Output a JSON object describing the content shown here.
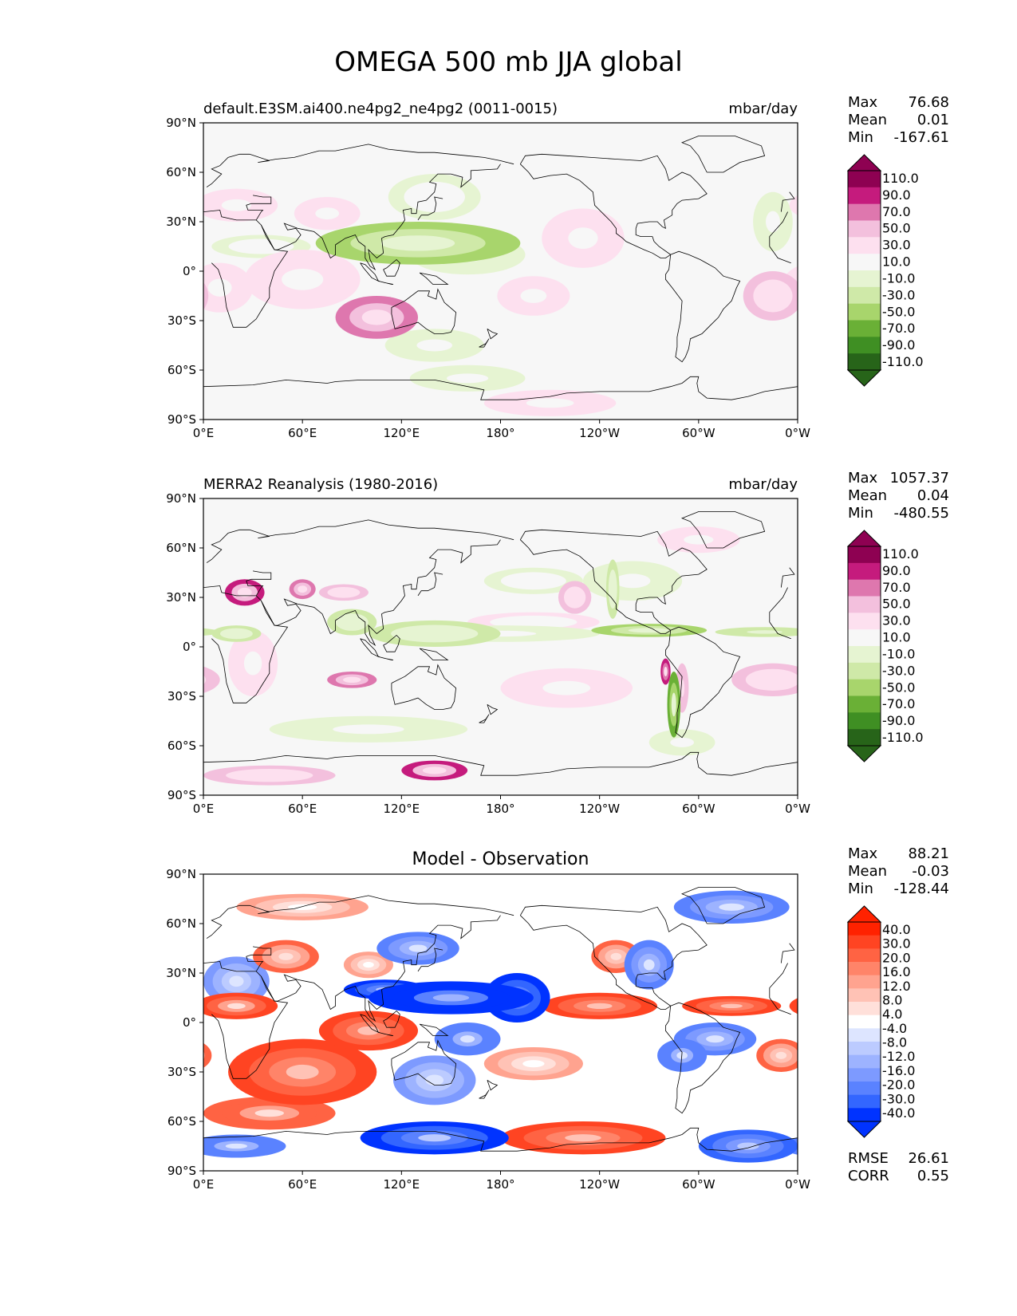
{
  "figure": {
    "title": "OMEGA 500 mb JJA global"
  },
  "axes": {
    "lat_ticks": [
      "90°N",
      "60°N",
      "30°N",
      "0°",
      "30°S",
      "60°S",
      "90°S"
    ],
    "lon_ticks": [
      "0°E",
      "60°E",
      "120°E",
      "180°",
      "120°W",
      "60°W",
      "0°W"
    ]
  },
  "colors": {
    "omega_levels_colors": [
      "#276419",
      "#3f8f23",
      "#6ab036",
      "#a8d56c",
      "#cfe9a8",
      "#e6f4d2",
      "#f7f7f7",
      "#fde0ef",
      "#f3c0dd",
      "#de77ae",
      "#c51b7d",
      "#8e0152"
    ],
    "diff_levels_colors": [
      "#0033ff",
      "#3366ff",
      "#5a82ff",
      "#7d9aff",
      "#9db3ff",
      "#bccbff",
      "#dde5ff",
      "#ffffff",
      "#ffe0da",
      "#ffc2b5",
      "#ffa38f",
      "#ff8469",
      "#ff6343",
      "#ff4422",
      "#ff2200"
    ],
    "coast": "#000000"
  },
  "chart_data": [
    {
      "type": "heatmap",
      "id": "model",
      "left_title": "default.E3SM.ai400.ne4pg2_ne4pg2 (0011-0015)",
      "right_title": "mbar/day",
      "center_title": "",
      "xlim": [
        0,
        360
      ],
      "ylim": [
        -90,
        90
      ],
      "stats": [
        {
          "label": "Max",
          "value": "76.68"
        },
        {
          "label": "Mean",
          "value": "0.01"
        },
        {
          "label": "Min",
          "value": "-167.61"
        }
      ],
      "colorbar_levels": [
        "110.0",
        "90.0",
        "70.0",
        "50.0",
        "30.0",
        "10.0",
        "-10.0",
        "-30.0",
        "-50.0",
        "-70.0",
        "-90.0",
        "-110.0"
      ],
      "features": [
        {
          "lon": 130,
          "lat": 17,
          "rx": 62,
          "ry": 13,
          "v": -60
        },
        {
          "lon": 130,
          "lat": 17,
          "rx": 48,
          "ry": 8,
          "v": -50
        },
        {
          "lon": 108,
          "lat": 15,
          "rx": 22,
          "ry": 7,
          "v": -40
        },
        {
          "lon": 160,
          "lat": 10,
          "rx": 35,
          "ry": 12,
          "v": -22
        },
        {
          "lon": 140,
          "lat": 45,
          "rx": 28,
          "ry": 14,
          "v": -12
        },
        {
          "lon": 35,
          "lat": 15,
          "rx": 30,
          "ry": 7,
          "v": -12
        },
        {
          "lon": 345,
          "lat": 30,
          "rx": 12,
          "ry": 18,
          "v": -15
        },
        {
          "lon": 300,
          "lat": 55,
          "rx": 30,
          "ry": 10,
          "v": -10
        },
        {
          "lon": 105,
          "lat": -28,
          "rx": 25,
          "ry": 13,
          "v": 55
        },
        {
          "lon": 100,
          "lat": -25,
          "rx": 14,
          "ry": 6,
          "v": 30
        },
        {
          "lon": 60,
          "lat": -5,
          "rx": 35,
          "ry": 18,
          "v": 25
        },
        {
          "lon": 10,
          "lat": -10,
          "rx": 20,
          "ry": 15,
          "v": 25
        },
        {
          "lon": 345,
          "lat": -15,
          "rx": 18,
          "ry": 15,
          "v": 35
        },
        {
          "lon": 350,
          "lat": -15,
          "rx": 6,
          "ry": 8,
          "v": 30
        },
        {
          "lon": 230,
          "lat": 20,
          "rx": 25,
          "ry": 18,
          "v": 15
        },
        {
          "lon": 200,
          "lat": -15,
          "rx": 22,
          "ry": 12,
          "v": 20
        },
        {
          "lon": 75,
          "lat": 35,
          "rx": 20,
          "ry": 10,
          "v": 20
        },
        {
          "lon": 20,
          "lat": 40,
          "rx": 25,
          "ry": 10,
          "v": 18
        },
        {
          "lon": 210,
          "lat": -80,
          "rx": 40,
          "ry": 8,
          "v": 15
        },
        {
          "lon": 140,
          "lat": -45,
          "rx": 30,
          "ry": 10,
          "v": -15
        },
        {
          "lon": 160,
          "lat": -65,
          "rx": 35,
          "ry": 8,
          "v": -15
        }
      ]
    },
    {
      "type": "heatmap",
      "id": "obs",
      "left_title": "MERRA2 Reanalysis (1980-2016)",
      "right_title": "mbar/day",
      "center_title": "",
      "xlim": [
        0,
        360
      ],
      "ylim": [
        -90,
        90
      ],
      "stats": [
        {
          "label": "Max",
          "value": "1057.37"
        },
        {
          "label": "Mean",
          "value": "0.04"
        },
        {
          "label": "Min",
          "value": "-480.55"
        }
      ],
      "colorbar_levels": [
        "110.0",
        "90.0",
        "70.0",
        "50.0",
        "30.0",
        "10.0",
        "-10.0",
        "-30.0",
        "-50.0",
        "-70.0",
        "-90.0",
        "-110.0"
      ],
      "features": [
        {
          "lon": 270,
          "lat": 10,
          "rx": 35,
          "ry": 4,
          "v": -60
        },
        {
          "lon": 340,
          "lat": 9,
          "rx": 30,
          "ry": 3,
          "v": -50
        },
        {
          "lon": 140,
          "lat": 8,
          "rx": 40,
          "ry": 8,
          "v": -40
        },
        {
          "lon": 90,
          "lat": 15,
          "rx": 15,
          "ry": 8,
          "v": -40
        },
        {
          "lon": 20,
          "lat": 8,
          "rx": 15,
          "ry": 5,
          "v": -35
        },
        {
          "lon": 180,
          "lat": 8,
          "rx": 60,
          "ry": 5,
          "v": -20
        },
        {
          "lon": 285,
          "lat": -35,
          "rx": 4,
          "ry": 20,
          "v": -80
        },
        {
          "lon": 280,
          "lat": -15,
          "rx": 3,
          "ry": 8,
          "v": 80
        },
        {
          "lon": 290,
          "lat": -25,
          "rx": 4,
          "ry": 15,
          "v": 45
        },
        {
          "lon": 248,
          "lat": 35,
          "rx": 4,
          "ry": 18,
          "v": -40
        },
        {
          "lon": 25,
          "lat": 33,
          "rx": 12,
          "ry": 8,
          "v": 70
        },
        {
          "lon": 60,
          "lat": 35,
          "rx": 8,
          "ry": 6,
          "v": 50
        },
        {
          "lon": 85,
          "lat": 33,
          "rx": 15,
          "ry": 5,
          "v": 40
        },
        {
          "lon": 225,
          "lat": 30,
          "rx": 10,
          "ry": 10,
          "v": 35
        },
        {
          "lon": 90,
          "lat": -20,
          "rx": 15,
          "ry": 5,
          "v": 55
        },
        {
          "lon": 30,
          "lat": -10,
          "rx": 15,
          "ry": 20,
          "v": 25
        },
        {
          "lon": 345,
          "lat": -20,
          "rx": 25,
          "ry": 10,
          "v": 30
        },
        {
          "lon": 220,
          "lat": -25,
          "rx": 40,
          "ry": 12,
          "v": 18
        },
        {
          "lon": 140,
          "lat": -75,
          "rx": 20,
          "ry": 6,
          "v": 70
        },
        {
          "lon": 40,
          "lat": -78,
          "rx": 40,
          "ry": 6,
          "v": 30
        },
        {
          "lon": 100,
          "lat": -50,
          "rx": 60,
          "ry": 8,
          "v": -18
        },
        {
          "lon": 290,
          "lat": -58,
          "rx": 20,
          "ry": 8,
          "v": -15
        },
        {
          "lon": 260,
          "lat": 40,
          "rx": 30,
          "ry": 12,
          "v": -15
        },
        {
          "lon": 300,
          "lat": 65,
          "rx": 25,
          "ry": 8,
          "v": 20
        },
        {
          "lon": 200,
          "lat": 40,
          "rx": 30,
          "ry": 8,
          "v": -12
        },
        {
          "lon": 200,
          "lat": 15,
          "rx": 40,
          "ry": 6,
          "v": 12
        }
      ]
    },
    {
      "type": "heatmap",
      "id": "diff",
      "left_title": "",
      "right_title": "",
      "center_title": "Model - Observation",
      "xlim": [
        0,
        360
      ],
      "ylim": [
        -90,
        90
      ],
      "stats": [
        {
          "label": "Max",
          "value": "88.21"
        },
        {
          "label": "Mean",
          "value": "-0.03"
        },
        {
          "label": "Min",
          "value": "-128.44"
        }
      ],
      "colorbar_levels": [
        "40.0",
        "30.0",
        "20.0",
        "16.0",
        "12.0",
        "8.0",
        "4.0",
        "-4.0",
        "-8.0",
        "-12.0",
        "-16.0",
        "-20.0",
        "-30.0",
        "-40.0"
      ],
      "metrics": [
        {
          "label": "RMSE",
          "value": "26.61"
        },
        {
          "label": "CORR",
          "value": "0.55"
        }
      ],
      "features": [
        {
          "lon": 150,
          "lat": 15,
          "rx": 50,
          "ry": 10,
          "v": -55
        },
        {
          "lon": 190,
          "lat": 15,
          "rx": 20,
          "ry": 15,
          "v": -45
        },
        {
          "lon": 110,
          "lat": 20,
          "rx": 25,
          "ry": 6,
          "v": -45
        },
        {
          "lon": 160,
          "lat": -10,
          "rx": 20,
          "ry": 10,
          "v": -30
        },
        {
          "lon": 140,
          "lat": -70,
          "rx": 45,
          "ry": 10,
          "v": -45
        },
        {
          "lon": 20,
          "lat": -75,
          "rx": 30,
          "ry": 7,
          "v": -30
        },
        {
          "lon": 330,
          "lat": -75,
          "rx": 30,
          "ry": 10,
          "v": -35
        },
        {
          "lon": 320,
          "lat": 70,
          "rx": 35,
          "ry": 10,
          "v": -25
        },
        {
          "lon": 270,
          "lat": 35,
          "rx": 15,
          "ry": 15,
          "v": -25
        },
        {
          "lon": 290,
          "lat": -20,
          "rx": 15,
          "ry": 10,
          "v": -30
        },
        {
          "lon": 310,
          "lat": -10,
          "rx": 25,
          "ry": 10,
          "v": -25
        },
        {
          "lon": 140,
          "lat": -35,
          "rx": 25,
          "ry": 15,
          "v": -20
        },
        {
          "lon": 130,
          "lat": 45,
          "rx": 25,
          "ry": 10,
          "v": -25
        },
        {
          "lon": 20,
          "lat": 25,
          "rx": 20,
          "ry": 15,
          "v": -20
        },
        {
          "lon": 60,
          "lat": -30,
          "rx": 45,
          "ry": 20,
          "v": 35
        },
        {
          "lon": 100,
          "lat": -5,
          "rx": 30,
          "ry": 12,
          "v": 38
        },
        {
          "lon": 20,
          "lat": 10,
          "rx": 25,
          "ry": 8,
          "v": 30
        },
        {
          "lon": 40,
          "lat": -55,
          "rx": 40,
          "ry": 10,
          "v": 28
        },
        {
          "lon": 240,
          "lat": 10,
          "rx": 35,
          "ry": 8,
          "v": 35
        },
        {
          "lon": 320,
          "lat": 10,
          "rx": 30,
          "ry": 6,
          "v": 32
        },
        {
          "lon": 230,
          "lat": -70,
          "rx": 50,
          "ry": 10,
          "v": 35
        },
        {
          "lon": 250,
          "lat": 40,
          "rx": 15,
          "ry": 10,
          "v": 20
        },
        {
          "lon": 50,
          "lat": 40,
          "rx": 20,
          "ry": 10,
          "v": 20
        },
        {
          "lon": 100,
          "lat": 35,
          "rx": 15,
          "ry": 8,
          "v": 15
        },
        {
          "lon": 350,
          "lat": -20,
          "rx": 15,
          "ry": 10,
          "v": 20
        },
        {
          "lon": 60,
          "lat": 70,
          "rx": 40,
          "ry": 8,
          "v": 12
        },
        {
          "lon": 200,
          "lat": -25,
          "rx": 30,
          "ry": 10,
          "v": 12
        }
      ]
    }
  ]
}
